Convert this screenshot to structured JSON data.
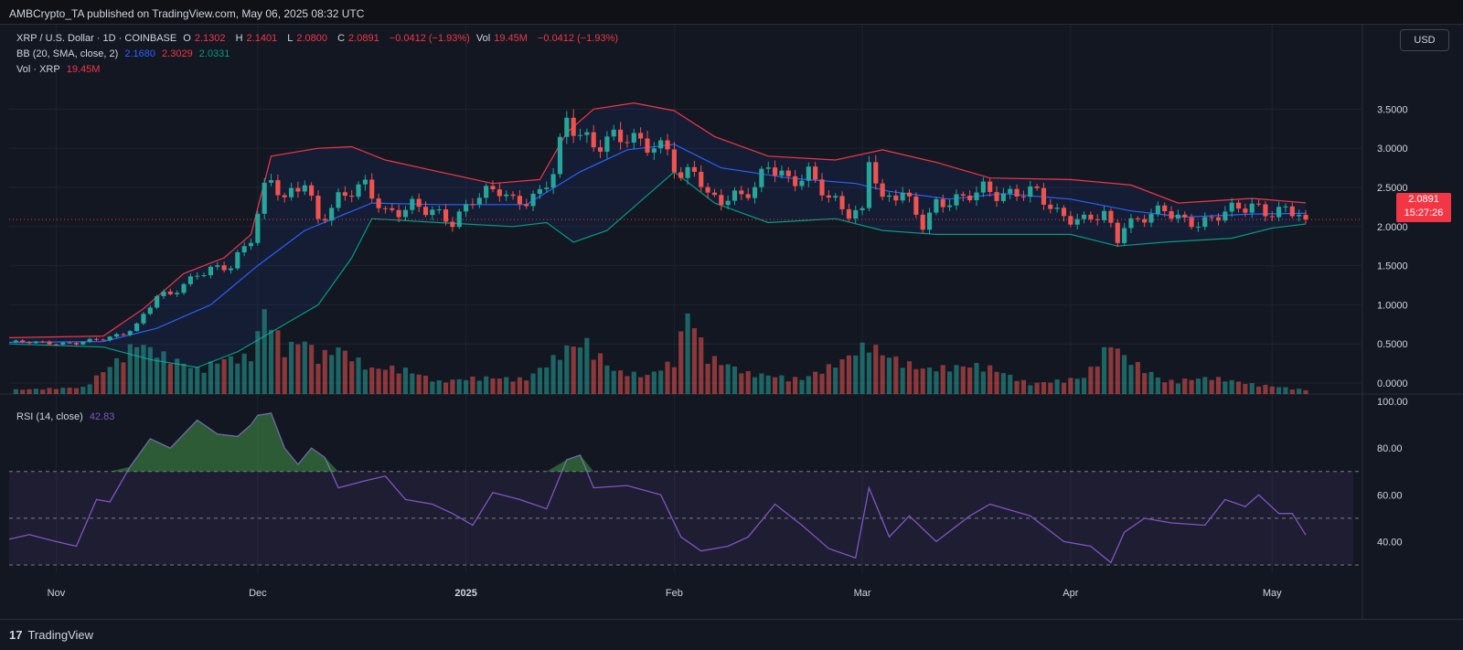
{
  "header": {
    "publish_text": "AMBCrypto_TA published on TradingView.com, May 06, 2025 08:32 UTC"
  },
  "legend": {
    "symbol": "XRP / U.S. Dollar · 1D · COINBASE",
    "open_label": "O",
    "open": "2.1302",
    "high_label": "H",
    "high": "2.1401",
    "low_label": "L",
    "low": "2.0800",
    "close_label": "C",
    "close": "2.0891",
    "change": "−0.0412 (−1.93%)",
    "vol_label": "Vol",
    "vol": "19.45M",
    "vol_change": "−0.0412 (−1.93%)",
    "bb_label": "BB (20, SMA, close, 2)",
    "bb_basis": "2.1680",
    "bb_upper": "2.3029",
    "bb_lower": "2.0331",
    "vol_series_label": "Vol · XRP",
    "vol_series_value": "19.45M",
    "rsi_label": "RSI (14, close)",
    "rsi_value": "42.83"
  },
  "currency_button": "USD",
  "price_badge": {
    "price": "2.0891",
    "countdown": "15:27:26"
  },
  "footer": {
    "brand": "TradingView",
    "logo_mark": "17"
  },
  "colors": {
    "background": "#131722",
    "up": "#26a69a",
    "down": "#ef5350",
    "bb_basis": "#2962ff",
    "bb_upper": "#f23645",
    "bb_lower": "#089981",
    "rsi_line": "#7e57c2",
    "grid": "#1f2330"
  },
  "chart_data": [
    {
      "type": "candlestick",
      "title": "XRP / U.S. Dollar · 1D · COINBASE",
      "x_ticks": [
        "Nov",
        "Dec",
        "2025",
        "Feb",
        "Mar",
        "Apr",
        "May"
      ],
      "x_tick_dates": [
        "2024-11-01",
        "2024-12-01",
        "2025-01-01",
        "2025-02-01",
        "2025-03-01",
        "2025-04-01",
        "2025-05-01"
      ],
      "y_ticks": [
        "3.5000",
        "3.0000",
        "2.5000",
        "2.0000",
        "1.5000",
        "1.0000",
        "0.5000",
        "0.0000"
      ],
      "ylim": [
        0,
        3.5
      ],
      "date_range": [
        "2024-10-25",
        "2025-05-06"
      ],
      "close_path": [
        [
          "2024-10-25",
          0.52
        ],
        [
          "2024-11-04",
          0.51
        ],
        [
          "2024-11-08",
          0.56
        ],
        [
          "2024-11-11",
          0.64
        ],
        [
          "2024-11-13",
          0.75
        ],
        [
          "2024-11-16",
          1.1
        ],
        [
          "2024-11-18",
          1.12
        ],
        [
          "2024-11-22",
          1.42
        ],
        [
          "2024-11-24",
          1.45
        ],
        [
          "2024-11-27",
          1.46
        ],
        [
          "2024-11-30",
          1.88
        ],
        [
          "2024-12-02",
          2.52
        ],
        [
          "2024-12-03",
          2.65
        ],
        [
          "2024-12-05",
          2.3
        ],
        [
          "2024-12-08",
          2.55
        ],
        [
          "2024-12-10",
          2.1
        ],
        [
          "2024-12-13",
          2.38
        ],
        [
          "2024-12-17",
          2.48
        ],
        [
          "2024-12-20",
          2.2
        ],
        [
          "2024-12-24",
          2.27
        ],
        [
          "2024-12-26",
          2.18
        ],
        [
          "2024-12-30",
          2.08
        ],
        [
          "2025-01-02",
          2.38
        ],
        [
          "2025-01-06",
          2.43
        ],
        [
          "2025-01-08",
          2.32
        ],
        [
          "2025-01-12",
          2.44
        ],
        [
          "2025-01-14",
          2.68
        ],
        [
          "2025-01-16",
          3.3
        ],
        [
          "2025-01-18",
          3.18
        ],
        [
          "2025-01-20",
          3.1
        ],
        [
          "2025-01-23",
          3.14
        ],
        [
          "2025-01-26",
          3.05
        ],
        [
          "2025-01-29",
          3.06
        ],
        [
          "2025-01-31",
          3.05
        ],
        [
          "2025-02-02",
          2.58
        ],
        [
          "2025-02-04",
          2.7
        ],
        [
          "2025-02-06",
          2.35
        ],
        [
          "2025-02-10",
          2.42
        ],
        [
          "2025-02-13",
          2.45
        ],
        [
          "2025-02-15",
          2.75
        ],
        [
          "2025-02-18",
          2.62
        ],
        [
          "2025-02-21",
          2.7
        ],
        [
          "2025-02-24",
          2.32
        ],
        [
          "2025-02-27",
          2.18
        ],
        [
          "2025-03-01",
          2.22
        ],
        [
          "2025-03-02",
          2.95
        ],
        [
          "2025-03-04",
          2.3
        ],
        [
          "2025-03-07",
          2.4
        ],
        [
          "2025-03-10",
          2.06
        ],
        [
          "2025-03-12",
          2.32
        ],
        [
          "2025-03-16",
          2.31
        ],
        [
          "2025-03-19",
          2.5
        ],
        [
          "2025-03-23",
          2.42
        ],
        [
          "2025-03-27",
          2.4
        ],
        [
          "2025-03-30",
          2.2
        ],
        [
          "2025-04-03",
          2.07
        ],
        [
          "2025-04-06",
          2.12
        ],
        [
          "2025-04-08",
          1.85
        ],
        [
          "2025-04-09",
          2.05
        ],
        [
          "2025-04-12",
          2.14
        ],
        [
          "2025-04-15",
          2.17
        ],
        [
          "2025-04-18",
          2.07
        ],
        [
          "2025-04-22",
          2.1
        ],
        [
          "2025-04-24",
          2.17
        ],
        [
          "2025-04-26",
          2.2
        ],
        [
          "2025-04-28",
          2.28
        ],
        [
          "2025-04-30",
          2.22
        ],
        [
          "2025-05-03",
          2.2
        ],
        [
          "2025-05-05",
          2.13
        ],
        [
          "2025-05-06",
          2.0891
        ]
      ],
      "bollinger_bands": {
        "name": "BB (20, SMA, close, 2)",
        "upper": [
          [
            "2024-10-25",
            0.58
          ],
          [
            "2024-11-08",
            0.6
          ],
          [
            "2024-11-14",
            0.95
          ],
          [
            "2024-11-20",
            1.4
          ],
          [
            "2024-11-26",
            1.6
          ],
          [
            "2024-11-30",
            1.9
          ],
          [
            "2024-12-03",
            2.9
          ],
          [
            "2024-12-10",
            3.0
          ],
          [
            "2024-12-15",
            3.02
          ],
          [
            "2024-12-20",
            2.85
          ],
          [
            "2024-12-28",
            2.7
          ],
          [
            "2025-01-05",
            2.55
          ],
          [
            "2025-01-12",
            2.6
          ],
          [
            "2025-01-16",
            3.2
          ],
          [
            "2025-01-20",
            3.5
          ],
          [
            "2025-01-26",
            3.58
          ],
          [
            "2025-02-01",
            3.48
          ],
          [
            "2025-02-07",
            3.15
          ],
          [
            "2025-02-15",
            2.9
          ],
          [
            "2025-02-25",
            2.85
          ],
          [
            "2025-03-04",
            2.98
          ],
          [
            "2025-03-12",
            2.82
          ],
          [
            "2025-03-20",
            2.62
          ],
          [
            "2025-04-01",
            2.6
          ],
          [
            "2025-04-10",
            2.53
          ],
          [
            "2025-04-17",
            2.3
          ],
          [
            "2025-04-28",
            2.36
          ],
          [
            "2025-05-06",
            2.3029
          ]
        ],
        "basis": [
          [
            "2024-10-25",
            0.52
          ],
          [
            "2024-11-08",
            0.53
          ],
          [
            "2024-11-16",
            0.7
          ],
          [
            "2024-11-24",
            1.0
          ],
          [
            "2024-12-01",
            1.5
          ],
          [
            "2024-12-08",
            1.95
          ],
          [
            "2024-12-18",
            2.3
          ],
          [
            "2024-12-28",
            2.28
          ],
          [
            "2025-01-10",
            2.28
          ],
          [
            "2025-01-18",
            2.7
          ],
          [
            "2025-01-25",
            2.98
          ],
          [
            "2025-02-01",
            3.05
          ],
          [
            "2025-02-08",
            2.75
          ],
          [
            "2025-02-18",
            2.62
          ],
          [
            "2025-02-28",
            2.55
          ],
          [
            "2025-03-05",
            2.45
          ],
          [
            "2025-03-14",
            2.35
          ],
          [
            "2025-03-22",
            2.42
          ],
          [
            "2025-04-01",
            2.35
          ],
          [
            "2025-04-10",
            2.2
          ],
          [
            "2025-04-18",
            2.12
          ],
          [
            "2025-04-28",
            2.16
          ],
          [
            "2025-05-06",
            2.168
          ]
        ],
        "lower": [
          [
            "2024-10-25",
            0.5
          ],
          [
            "2024-11-08",
            0.46
          ],
          [
            "2024-11-15",
            0.3
          ],
          [
            "2024-11-22",
            0.2
          ],
          [
            "2024-11-28",
            0.4
          ],
          [
            "2024-12-04",
            0.7
          ],
          [
            "2024-12-10",
            1.0
          ],
          [
            "2024-12-15",
            1.6
          ],
          [
            "2024-12-18",
            2.1
          ],
          [
            "2024-12-28",
            2.05
          ],
          [
            "2025-01-08",
            2.0
          ],
          [
            "2025-01-13",
            2.05
          ],
          [
            "2025-01-17",
            1.8
          ],
          [
            "2025-01-22",
            1.95
          ],
          [
            "2025-01-28",
            2.4
          ],
          [
            "2025-02-01",
            2.7
          ],
          [
            "2025-02-07",
            2.3
          ],
          [
            "2025-02-15",
            2.05
          ],
          [
            "2025-02-25",
            2.1
          ],
          [
            "2025-03-04",
            1.95
          ],
          [
            "2025-03-12",
            1.9
          ],
          [
            "2025-03-22",
            1.9
          ],
          [
            "2025-04-01",
            1.9
          ],
          [
            "2025-04-08",
            1.75
          ],
          [
            "2025-04-15",
            1.8
          ],
          [
            "2025-04-25",
            1.85
          ],
          [
            "2025-05-01",
            1.98
          ],
          [
            "2025-05-06",
            2.0331
          ]
        ]
      }
    },
    {
      "type": "bar",
      "title": "Vol · XRP",
      "note": "volume bars, relative height (0-1) sampled by date",
      "levels": [
        [
          "2024-10-25",
          0.05
        ],
        [
          "2024-11-05",
          0.08
        ],
        [
          "2024-11-10",
          0.4
        ],
        [
          "2024-11-13",
          0.62
        ],
        [
          "2024-11-16",
          0.5
        ],
        [
          "2024-11-22",
          0.3
        ],
        [
          "2024-11-26",
          0.42
        ],
        [
          "2024-11-30",
          0.45
        ],
        [
          "2024-12-02",
          1.0
        ],
        [
          "2024-12-05",
          0.55
        ],
        [
          "2024-12-08",
          0.65
        ],
        [
          "2024-12-10",
          0.45
        ],
        [
          "2024-12-13",
          0.55
        ],
        [
          "2024-12-18",
          0.3
        ],
        [
          "2024-12-22",
          0.32
        ],
        [
          "2024-12-28",
          0.15
        ],
        [
          "2025-01-03",
          0.2
        ],
        [
          "2025-01-10",
          0.18
        ],
        [
          "2025-01-16",
          0.55
        ],
        [
          "2025-01-19",
          0.62
        ],
        [
          "2025-01-23",
          0.28
        ],
        [
          "2025-01-28",
          0.22
        ],
        [
          "2025-02-01",
          0.4
        ],
        [
          "2025-02-03",
          1.0
        ],
        [
          "2025-02-06",
          0.45
        ],
        [
          "2025-02-12",
          0.25
        ],
        [
          "2025-02-20",
          0.18
        ],
        [
          "2025-02-26",
          0.4
        ],
        [
          "2025-03-02",
          0.62
        ],
        [
          "2025-03-04",
          0.48
        ],
        [
          "2025-03-10",
          0.3
        ],
        [
          "2025-03-19",
          0.35
        ],
        [
          "2025-03-26",
          0.12
        ],
        [
          "2025-04-03",
          0.2
        ],
        [
          "2025-04-07",
          0.62
        ],
        [
          "2025-04-09",
          0.45
        ],
        [
          "2025-04-15",
          0.15
        ],
        [
          "2025-04-22",
          0.2
        ],
        [
          "2025-04-28",
          0.12
        ],
        [
          "2025-05-06",
          0.05
        ]
      ]
    },
    {
      "type": "line",
      "title": "RSI (14, close)",
      "y_ticks": [
        "100.00",
        "80.00",
        "60.00",
        "40.00"
      ],
      "ylim": [
        30,
        100
      ],
      "bands": [
        30,
        50,
        70
      ],
      "series": [
        {
          "name": "RSI (14, close)",
          "points": [
            [
              "2024-10-25",
              41
            ],
            [
              "2024-10-28",
              43
            ],
            [
              "2024-11-01",
              40
            ],
            [
              "2024-11-04",
              38
            ],
            [
              "2024-11-07",
              58
            ],
            [
              "2024-11-09",
              57
            ],
            [
              "2024-11-12",
              72
            ],
            [
              "2024-11-15",
              84
            ],
            [
              "2024-11-18",
              80
            ],
            [
              "2024-11-22",
              92
            ],
            [
              "2024-11-25",
              86
            ],
            [
              "2024-11-28",
              85
            ],
            [
              "2024-11-30",
              90
            ],
            [
              "2024-12-01",
              94
            ],
            [
              "2024-12-03",
              95
            ],
            [
              "2024-12-05",
              80
            ],
            [
              "2024-12-07",
              73
            ],
            [
              "2024-12-09",
              80
            ],
            [
              "2024-12-11",
              76
            ],
            [
              "2024-12-13",
              63
            ],
            [
              "2024-12-17",
              66
            ],
            [
              "2024-12-20",
              68
            ],
            [
              "2024-12-23",
              58
            ],
            [
              "2024-12-27",
              56
            ],
            [
              "2024-12-30",
              52
            ],
            [
              "2025-01-02",
              47
            ],
            [
              "2025-01-05",
              61
            ],
            [
              "2025-01-09",
              58
            ],
            [
              "2025-01-13",
              54
            ],
            [
              "2025-01-16",
              75
            ],
            [
              "2025-01-18",
              77
            ],
            [
              "2025-01-20",
              63
            ],
            [
              "2025-01-25",
              64
            ],
            [
              "2025-01-30",
              60
            ],
            [
              "2025-02-02",
              42
            ],
            [
              "2025-02-05",
              36
            ],
            [
              "2025-02-09",
              38
            ],
            [
              "2025-02-12",
              42
            ],
            [
              "2025-02-16",
              56
            ],
            [
              "2025-02-20",
              47
            ],
            [
              "2025-02-24",
              37
            ],
            [
              "2025-02-28",
              33
            ],
            [
              "2025-03-02",
              63
            ],
            [
              "2025-03-05",
              42
            ],
            [
              "2025-03-08",
              51
            ],
            [
              "2025-03-12",
              40
            ],
            [
              "2025-03-17",
              51
            ],
            [
              "2025-03-20",
              56
            ],
            [
              "2025-03-26",
              51
            ],
            [
              "2025-03-31",
              40
            ],
            [
              "2025-04-04",
              38
            ],
            [
              "2025-04-07",
              31
            ],
            [
              "2025-04-09",
              44
            ],
            [
              "2025-04-12",
              50
            ],
            [
              "2025-04-16",
              48
            ],
            [
              "2025-04-21",
              47
            ],
            [
              "2025-04-24",
              58
            ],
            [
              "2025-04-27",
              55
            ],
            [
              "2025-04-29",
              60
            ],
            [
              "2025-05-02",
              52
            ],
            [
              "2025-05-04",
              52
            ],
            [
              "2025-05-06",
              42.83
            ]
          ]
        }
      ]
    }
  ]
}
